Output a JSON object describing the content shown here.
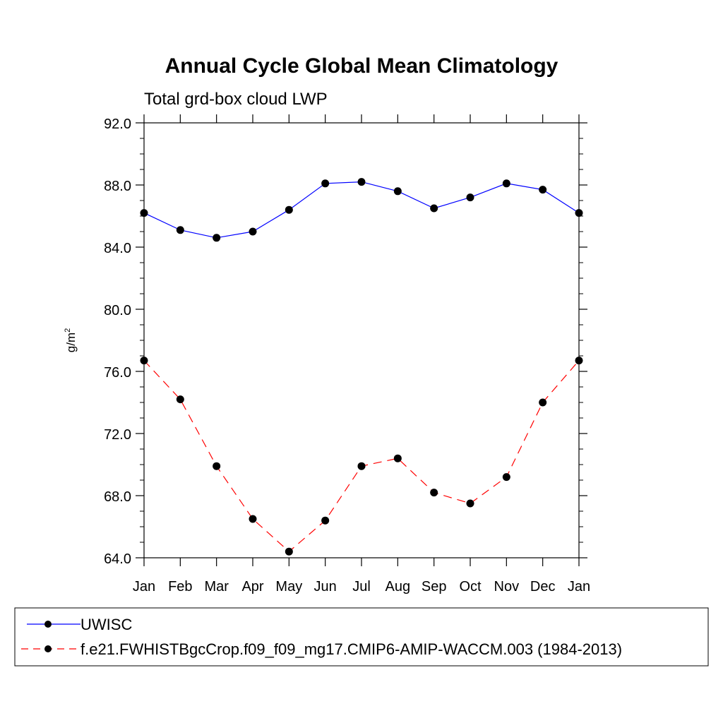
{
  "chart_data": {
    "type": "line",
    "title": "Annual Cycle Global Mean Climatology",
    "subtitle": "Total grd-box cloud LWP",
    "xlabel": "",
    "ylabel_base": "g/m",
    "ylabel_exp": "2",
    "categories": [
      "Jan",
      "Feb",
      "Mar",
      "Apr",
      "May",
      "Jun",
      "Jul",
      "Aug",
      "Sep",
      "Oct",
      "Nov",
      "Dec",
      "Jan"
    ],
    "ylim": [
      64.0,
      92.0
    ],
    "yticks": [
      64.0,
      68.0,
      72.0,
      76.0,
      80.0,
      84.0,
      88.0,
      92.0
    ],
    "ytick_labels": [
      "64.0",
      "68.0",
      "72.0",
      "76.0",
      "80.0",
      "84.0",
      "88.0",
      "92.0"
    ],
    "series": [
      {
        "name": "UWISC",
        "color": "#0000ff",
        "dash": "solid",
        "values": [
          86.2,
          85.1,
          84.6,
          85.0,
          86.4,
          88.1,
          88.2,
          87.6,
          86.5,
          87.2,
          88.1,
          87.7,
          86.2
        ]
      },
      {
        "name": "f.e21.FWHISTBgcCrop.f09_f09_mg17.CMIP6-AMIP-WACCM.003 (1984-2013)",
        "color": "#ff0000",
        "dash": "dashed",
        "values": [
          76.7,
          74.2,
          69.9,
          66.5,
          64.4,
          66.4,
          69.9,
          70.4,
          68.2,
          67.5,
          69.2,
          74.0,
          76.7
        ]
      }
    ],
    "legend_position": "bottom"
  }
}
